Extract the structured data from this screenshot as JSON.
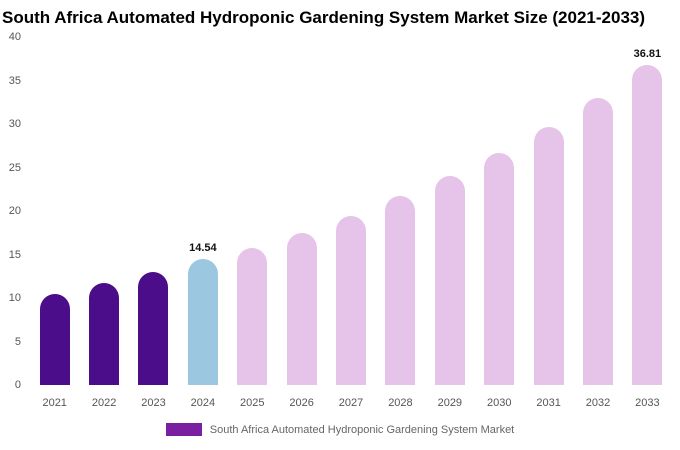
{
  "title": "South Africa Automated Hydroponic Gardening System Market Size (2021-2033)",
  "legend": {
    "label": "South Africa Automated Hydroponic Gardening System Market",
    "swatch_color": "#7b1fa2"
  },
  "colors": {
    "historical": "#4b0d8a",
    "current": "#9cc7e0",
    "forecast": "#e6c3e8"
  },
  "chart_data": {
    "type": "bar",
    "title": "South Africa Automated Hydroponic Gardening System Market Size (2021-2033)",
    "categories": [
      "2021",
      "2022",
      "2023",
      "2024",
      "2025",
      "2026",
      "2027",
      "2028",
      "2029",
      "2030",
      "2031",
      "2032",
      "2033"
    ],
    "values": [
      10.5,
      11.7,
      13.0,
      14.54,
      15.8,
      17.5,
      19.4,
      21.7,
      24.0,
      26.7,
      29.7,
      33.0,
      36.81
    ],
    "roles": [
      "historical",
      "historical",
      "historical",
      "current",
      "forecast",
      "forecast",
      "forecast",
      "forecast",
      "forecast",
      "forecast",
      "forecast",
      "forecast",
      "forecast"
    ],
    "data_labels": [
      "",
      "",
      "",
      "14.54",
      "",
      "",
      "",
      "",
      "",
      "",
      "",
      "",
      "36.81"
    ],
    "xlabel": "",
    "ylabel": "",
    "ylim": [
      0,
      40
    ],
    "yticks": [
      0,
      5,
      10,
      15,
      20,
      25,
      30,
      35,
      40
    ],
    "grid": false,
    "legend_position": "bottom",
    "legend_entries": [
      "South Africa Automated Hydroponic Gardening System Market"
    ]
  }
}
